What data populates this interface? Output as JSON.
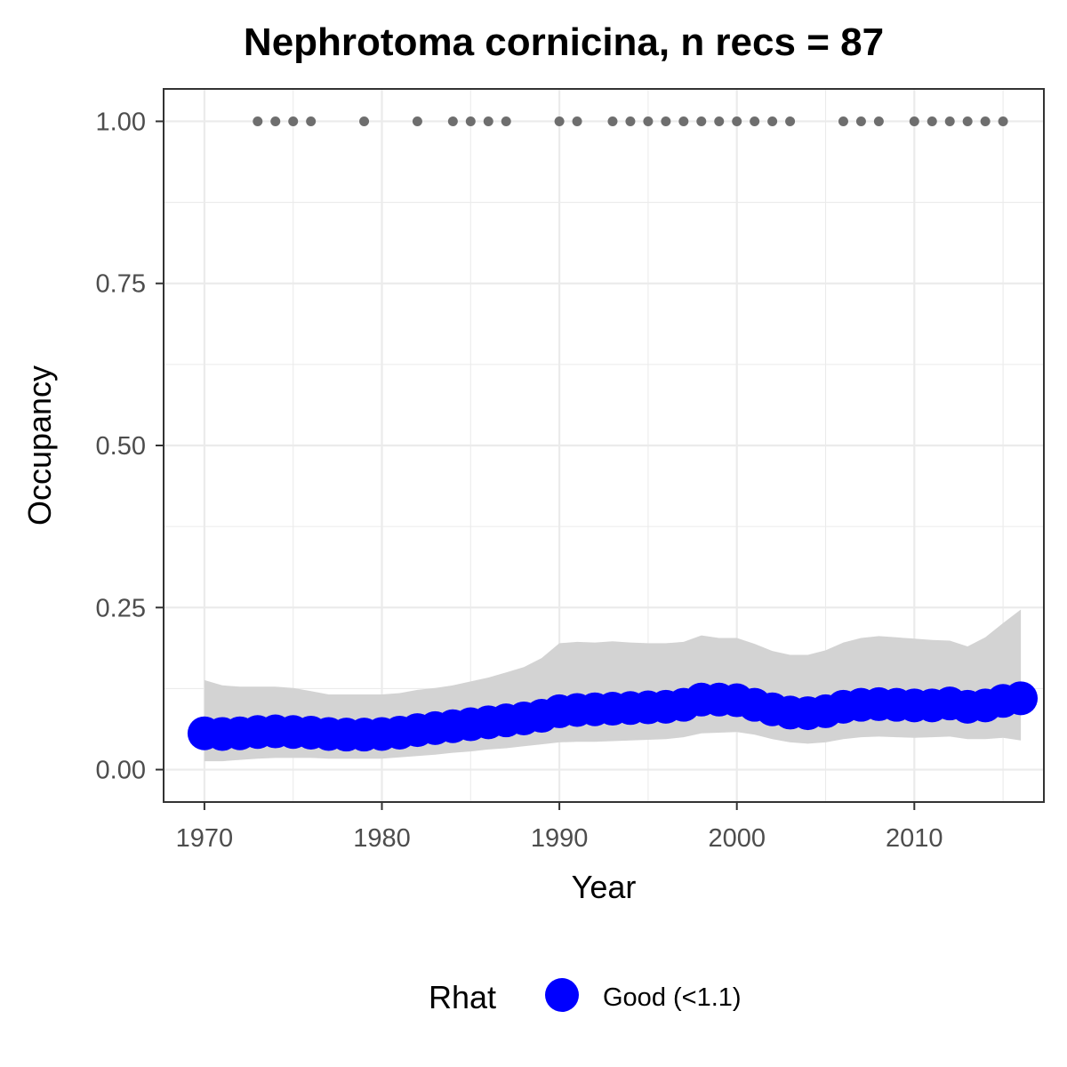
{
  "chart_data": {
    "type": "line",
    "title": "Nephrotoma cornicina, n recs = 87",
    "xlabel": "Year",
    "ylabel": "Occupancy",
    "xlim": [
      1967.7,
      2017.3
    ],
    "ylim": [
      -0.05,
      1.05
    ],
    "x_ticks": [
      1970,
      1980,
      1990,
      2000,
      2010
    ],
    "x_tick_labels": [
      "1970",
      "1980",
      "1990",
      "2000",
      "2010"
    ],
    "y_ticks": [
      0.0,
      0.25,
      0.5,
      0.75,
      1.0
    ],
    "y_tick_labels": [
      "0.00",
      "0.25",
      "0.50",
      "0.75",
      "1.00"
    ],
    "grid": true,
    "years": [
      1970,
      1971,
      1972,
      1973,
      1974,
      1975,
      1976,
      1977,
      1978,
      1979,
      1980,
      1981,
      1982,
      1983,
      1984,
      1985,
      1986,
      1987,
      1988,
      1989,
      1990,
      1991,
      1992,
      1993,
      1994,
      1995,
      1996,
      1997,
      1998,
      1999,
      2000,
      2001,
      2002,
      2003,
      2004,
      2005,
      2006,
      2007,
      2008,
      2009,
      2010,
      2011,
      2012,
      2013,
      2014,
      2015,
      2016
    ],
    "occupancy": [
      0.056,
      0.055,
      0.056,
      0.058,
      0.059,
      0.058,
      0.057,
      0.055,
      0.054,
      0.054,
      0.055,
      0.057,
      0.061,
      0.064,
      0.067,
      0.07,
      0.073,
      0.076,
      0.079,
      0.083,
      0.09,
      0.092,
      0.093,
      0.094,
      0.095,
      0.096,
      0.097,
      0.1,
      0.108,
      0.108,
      0.107,
      0.1,
      0.093,
      0.088,
      0.087,
      0.09,
      0.097,
      0.1,
      0.101,
      0.1,
      0.099,
      0.099,
      0.102,
      0.097,
      0.099,
      0.106,
      0.11
    ],
    "ci_upper": [
      0.138,
      0.13,
      0.128,
      0.128,
      0.128,
      0.126,
      0.121,
      0.116,
      0.116,
      0.116,
      0.116,
      0.118,
      0.123,
      0.126,
      0.13,
      0.136,
      0.142,
      0.15,
      0.158,
      0.172,
      0.195,
      0.197,
      0.196,
      0.198,
      0.196,
      0.195,
      0.195,
      0.197,
      0.207,
      0.203,
      0.203,
      0.194,
      0.183,
      0.177,
      0.177,
      0.184,
      0.196,
      0.203,
      0.206,
      0.204,
      0.202,
      0.2,
      0.199,
      0.19,
      0.204,
      0.226,
      0.247
    ],
    "ci_lower": [
      0.013,
      0.013,
      0.015,
      0.017,
      0.018,
      0.018,
      0.018,
      0.017,
      0.017,
      0.017,
      0.017,
      0.019,
      0.021,
      0.023,
      0.026,
      0.028,
      0.031,
      0.033,
      0.036,
      0.039,
      0.042,
      0.043,
      0.043,
      0.044,
      0.045,
      0.046,
      0.047,
      0.05,
      0.056,
      0.057,
      0.058,
      0.054,
      0.047,
      0.042,
      0.04,
      0.042,
      0.047,
      0.05,
      0.051,
      0.05,
      0.049,
      0.05,
      0.051,
      0.047,
      0.047,
      0.049,
      0.045
    ],
    "record_years": [
      1973,
      1974,
      1975,
      1976,
      1979,
      1982,
      1984,
      1985,
      1986,
      1987,
      1990,
      1991,
      1993,
      1994,
      1995,
      1996,
      1997,
      1998,
      1999,
      2000,
      2001,
      2002,
      2003,
      2006,
      2007,
      2008,
      2010,
      2011,
      2012,
      2013,
      2014,
      2015
    ],
    "record_value": 1.0,
    "legend": {
      "title": "Rhat",
      "entries": [
        {
          "label": "Good (<1.1)",
          "color": "#0000ff"
        }
      ],
      "position": "bottom"
    },
    "colors": {
      "points": "#0000ff",
      "ribbon": "#d3d3d3",
      "records": "#6e6e6e",
      "grid": "#ebebeb",
      "panel_border": "#333333"
    }
  }
}
